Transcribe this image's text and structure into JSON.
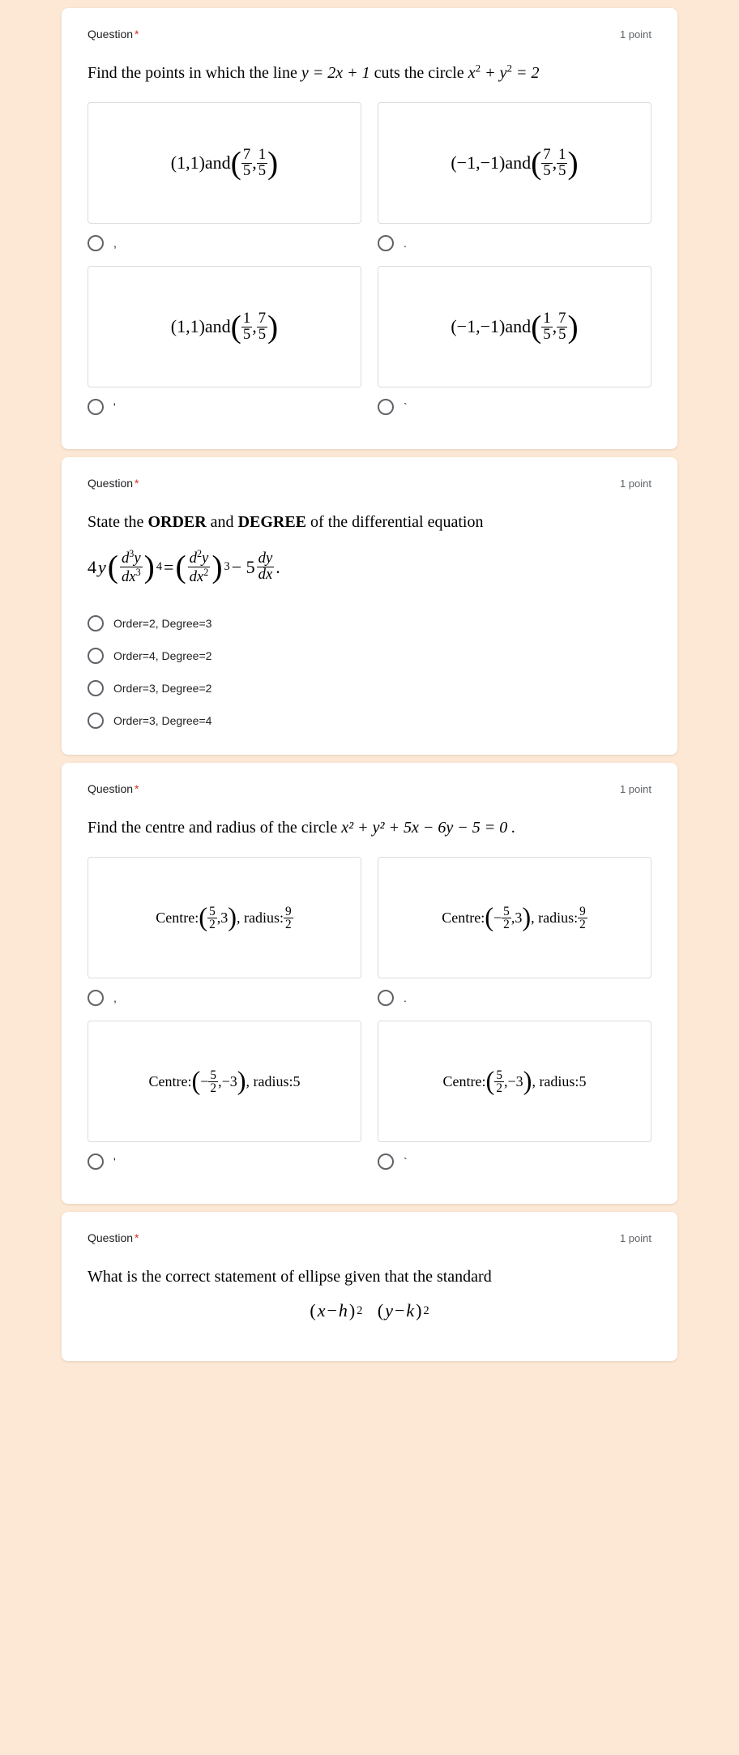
{
  "q1": {
    "label": "Question",
    "points": "1 point",
    "text_pre": "Find the points in which the line ",
    "eq1": "y = 2x + 1",
    "text_mid": " cuts the circle ",
    "eq2_a": "x",
    "eq2_b": " + y",
    "eq2_c": " = 2",
    "opts": [
      {
        "a": "(1,1)",
        "mid": " and ",
        "f1n": "7",
        "f1d": "5",
        "f2n": "1",
        "f2d": "5"
      },
      {
        "a": "(−1,−1)",
        "mid": " and ",
        "f1n": "7",
        "f1d": "5",
        "f2n": "1",
        "f2d": "5"
      },
      {
        "a": "(1,1)",
        "mid": " and ",
        "f1n": "1",
        "f1d": "5",
        "f2n": "7",
        "f2d": "5"
      },
      {
        "a": "(−1,−1)",
        "mid": " and ",
        "f1n": "1",
        "f1d": "5",
        "f2n": "7",
        "f2d": "5"
      }
    ],
    "r": [
      ",",
      ".",
      "'",
      "`"
    ]
  },
  "q2": {
    "label": "Question",
    "points": "1 point",
    "text_a": "State the ",
    "b1": "ORDER",
    "text_b": " and ",
    "b2": "DEGREE",
    "text_c": " of the differential equation",
    "opts": [
      "Order=2, Degree=3",
      "Order=4, Degree=2",
      "Order=3, Degree=2",
      "Order=3, Degree=4"
    ]
  },
  "q3": {
    "label": "Question",
    "points": "1 point",
    "text_a": "Find the centre and radius of the circle ",
    "eq": "x² + y² + 5x − 6y − 5 = 0 .",
    "opts": [
      {
        "pre": "Centre: ",
        "f1n": "5",
        "f1d": "2",
        "f1s": "",
        "mid": ",3",
        "rad": ", radius: ",
        "rn": "9",
        "rd": "2",
        "rfrac": true
      },
      {
        "pre": "Centre: ",
        "f1n": "5",
        "f1d": "2",
        "f1s": "−",
        "mid": ",3",
        "rad": ", radius: ",
        "rn": "9",
        "rd": "2",
        "rfrac": true
      },
      {
        "pre": "Centre: ",
        "f1n": "5",
        "f1d": "2",
        "f1s": "−",
        "mid": ",−3",
        "rad": ", radius: ",
        "rv": "5",
        "rfrac": false
      },
      {
        "pre": "Centre: ",
        "f1n": "5",
        "f1d": "2",
        "f1s": "",
        "mid": ",−3",
        "rad": ", radius: ",
        "rv": "5",
        "rfrac": false
      }
    ],
    "r": [
      ",",
      ".",
      "'",
      "`"
    ]
  },
  "q4": {
    "label": "Question",
    "points": "1 point",
    "text": "What is the correct statement of ellipse given that the standard"
  }
}
